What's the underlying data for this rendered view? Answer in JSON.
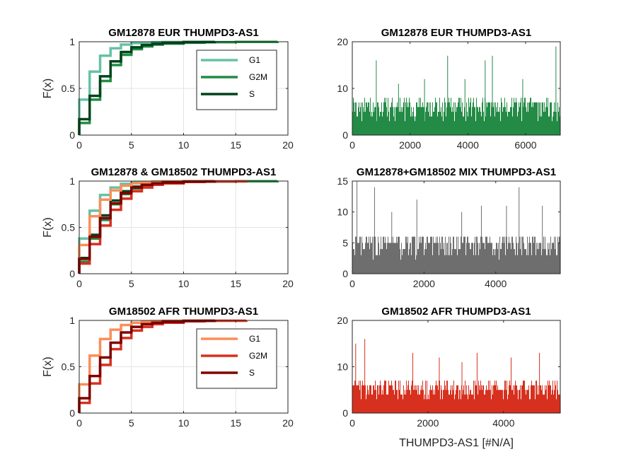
{
  "figure": {
    "xlabel_bottom": "THUMPD3-AS1 [#N/A]"
  },
  "chart_data": [
    {
      "id": "p1",
      "type": "line",
      "step": true,
      "title": "GM12878 EUR THUMPD3-AS1",
      "ylabel": "F(x)",
      "xlim": [
        0,
        20
      ],
      "ylim": [
        0,
        1
      ],
      "xticks": [
        0,
        5,
        10,
        15,
        20
      ],
      "yticks": [
        0,
        0.5,
        1
      ],
      "grid": true,
      "legend": "top-right",
      "series": [
        {
          "name": "G1",
          "color": "#66c2a4",
          "x": [
            0,
            1,
            2,
            3,
            4,
            5,
            6,
            7,
            8,
            10,
            13
          ],
          "y": [
            0.38,
            0.68,
            0.85,
            0.93,
            0.97,
            0.985,
            0.99,
            0.995,
            0.997,
            0.999,
            1.0
          ]
        },
        {
          "name": "G2M",
          "color": "#238b45",
          "x": [
            0,
            1,
            2,
            3,
            4,
            5,
            6,
            7,
            8,
            10,
            12,
            15,
            19
          ],
          "y": [
            0.13,
            0.38,
            0.58,
            0.75,
            0.86,
            0.92,
            0.95,
            0.97,
            0.98,
            0.99,
            0.995,
            0.998,
            1.0
          ]
        },
        {
          "name": "S",
          "color": "#00441b",
          "x": [
            0,
            1,
            2,
            3,
            4,
            5,
            6,
            7,
            8,
            10,
            13
          ],
          "y": [
            0.17,
            0.42,
            0.63,
            0.79,
            0.89,
            0.94,
            0.965,
            0.978,
            0.988,
            0.996,
            1.0
          ]
        }
      ]
    },
    {
      "id": "p2",
      "type": "bar",
      "title": "GM12878 EUR THUMPD3-AS1",
      "color": "#238b45",
      "xlim": [
        0,
        7200
      ],
      "ylim": [
        0,
        20
      ],
      "xticks": [
        0,
        2000,
        4000,
        6000
      ],
      "yticks": [
        0,
        10,
        20
      ],
      "count": 7200,
      "typical_max": 8,
      "peaks": [
        [
          830,
          16
        ],
        [
          1600,
          11
        ],
        [
          2500,
          12
        ],
        [
          3300,
          17
        ],
        [
          3900,
          12
        ],
        [
          4600,
          16
        ],
        [
          4850,
          17
        ],
        [
          5900,
          12
        ],
        [
          7050,
          19
        ]
      ]
    },
    {
      "id": "p3",
      "type": "line",
      "step": true,
      "title": "GM12878 & GM18502 THUMPD3-AS1",
      "ylabel": "F(x)",
      "xlim": [
        0,
        20
      ],
      "ylim": [
        0,
        1
      ],
      "xticks": [
        0,
        5,
        10,
        15,
        20
      ],
      "yticks": [
        0,
        0.5,
        1
      ],
      "grid": true,
      "series": [
        {
          "color": "#66c2a4",
          "x": [
            0,
            1,
            2,
            3,
            4,
            5,
            6,
            7,
            8,
            10,
            13
          ],
          "y": [
            0.38,
            0.68,
            0.85,
            0.93,
            0.97,
            0.985,
            0.99,
            0.995,
            0.997,
            0.999,
            1.0
          ]
        },
        {
          "color": "#238b45",
          "x": [
            0,
            1,
            2,
            3,
            4,
            5,
            6,
            7,
            8,
            10,
            12,
            15,
            19
          ],
          "y": [
            0.13,
            0.38,
            0.58,
            0.75,
            0.86,
            0.92,
            0.95,
            0.97,
            0.98,
            0.99,
            0.995,
            0.998,
            1.0
          ]
        },
        {
          "color": "#00441b",
          "x": [
            0,
            1,
            2,
            3,
            4,
            5,
            6,
            7,
            8,
            10,
            13
          ],
          "y": [
            0.17,
            0.42,
            0.63,
            0.79,
            0.89,
            0.94,
            0.965,
            0.978,
            0.988,
            0.996,
            1.0
          ]
        },
        {
          "color": "#fc8d59",
          "x": [
            0,
            1,
            2,
            3,
            4,
            5,
            6,
            7,
            8,
            10,
            13
          ],
          "y": [
            0.31,
            0.62,
            0.8,
            0.9,
            0.95,
            0.975,
            0.985,
            0.992,
            0.996,
            0.999,
            1.0
          ]
        },
        {
          "color": "#d7301f",
          "x": [
            0,
            1,
            2,
            3,
            4,
            5,
            6,
            7,
            8,
            10,
            12,
            16
          ],
          "y": [
            0.11,
            0.32,
            0.52,
            0.69,
            0.81,
            0.89,
            0.93,
            0.96,
            0.975,
            0.99,
            0.996,
            1.0
          ]
        },
        {
          "color": "#7f0000",
          "x": [
            0,
            1,
            2,
            3,
            4,
            5,
            6,
            7,
            8,
            10,
            13
          ],
          "y": [
            0.16,
            0.4,
            0.6,
            0.76,
            0.87,
            0.93,
            0.96,
            0.975,
            0.985,
            0.995,
            1.0
          ]
        }
      ]
    },
    {
      "id": "p4",
      "type": "bar",
      "title": "GM12878+GM18502 MIX THUMPD3-AS1",
      "color": "#6e6e6e",
      "xlim": [
        0,
        5800
      ],
      "ylim": [
        0,
        15
      ],
      "xticks": [
        0,
        2000,
        4000
      ],
      "yticks": [
        0,
        5,
        10,
        15
      ],
      "count": 5800,
      "typical_max": 6.5,
      "peaks": [
        [
          130,
          15
        ],
        [
          620,
          14
        ],
        [
          1100,
          10
        ],
        [
          1800,
          12
        ],
        [
          3050,
          10
        ],
        [
          3600,
          11
        ],
        [
          4300,
          11
        ],
        [
          4650,
          14
        ],
        [
          5300,
          11
        ]
      ]
    },
    {
      "id": "p5",
      "type": "line",
      "step": true,
      "title": "GM18502 AFR THUMPD3-AS1",
      "ylabel": "F(x)",
      "xlim": [
        0,
        20
      ],
      "ylim": [
        0,
        1
      ],
      "xticks": [
        0,
        5,
        10,
        15,
        20
      ],
      "yticks": [
        0,
        0.5,
        1
      ],
      "grid": true,
      "legend": "top-right",
      "series": [
        {
          "name": "G1",
          "color": "#fc8d59",
          "x": [
            0,
            1,
            2,
            3,
            4,
            5,
            6,
            7,
            8,
            10,
            13
          ],
          "y": [
            0.31,
            0.62,
            0.8,
            0.9,
            0.95,
            0.975,
            0.985,
            0.992,
            0.996,
            0.999,
            1.0
          ]
        },
        {
          "name": "G2M",
          "color": "#d7301f",
          "x": [
            0,
            1,
            2,
            3,
            4,
            5,
            6,
            7,
            8,
            10,
            12,
            16
          ],
          "y": [
            0.11,
            0.32,
            0.52,
            0.69,
            0.81,
            0.89,
            0.93,
            0.96,
            0.975,
            0.99,
            0.996,
            1.0
          ]
        },
        {
          "name": "S",
          "color": "#7f0000",
          "x": [
            0,
            1,
            2,
            3,
            4,
            5,
            6,
            7,
            8,
            10,
            13
          ],
          "y": [
            0.16,
            0.4,
            0.6,
            0.76,
            0.87,
            0.93,
            0.96,
            0.975,
            0.985,
            0.995,
            1.0
          ]
        }
      ]
    },
    {
      "id": "p6",
      "type": "bar",
      "title": "GM18502 AFR THUMPD3-AS1",
      "color": "#d7301f",
      "xlim": [
        0,
        5500
      ],
      "ylim": [
        0,
        20
      ],
      "xticks": [
        0,
        2000,
        4000
      ],
      "yticks": [
        0,
        10,
        20
      ],
      "count": 5500,
      "typical_max": 7,
      "peaks": [
        [
          90,
          15
        ],
        [
          330,
          16
        ],
        [
          1600,
          13
        ],
        [
          2300,
          12
        ],
        [
          2900,
          11
        ],
        [
          3300,
          13
        ],
        [
          4200,
          12
        ],
        [
          4950,
          13
        ]
      ]
    }
  ]
}
